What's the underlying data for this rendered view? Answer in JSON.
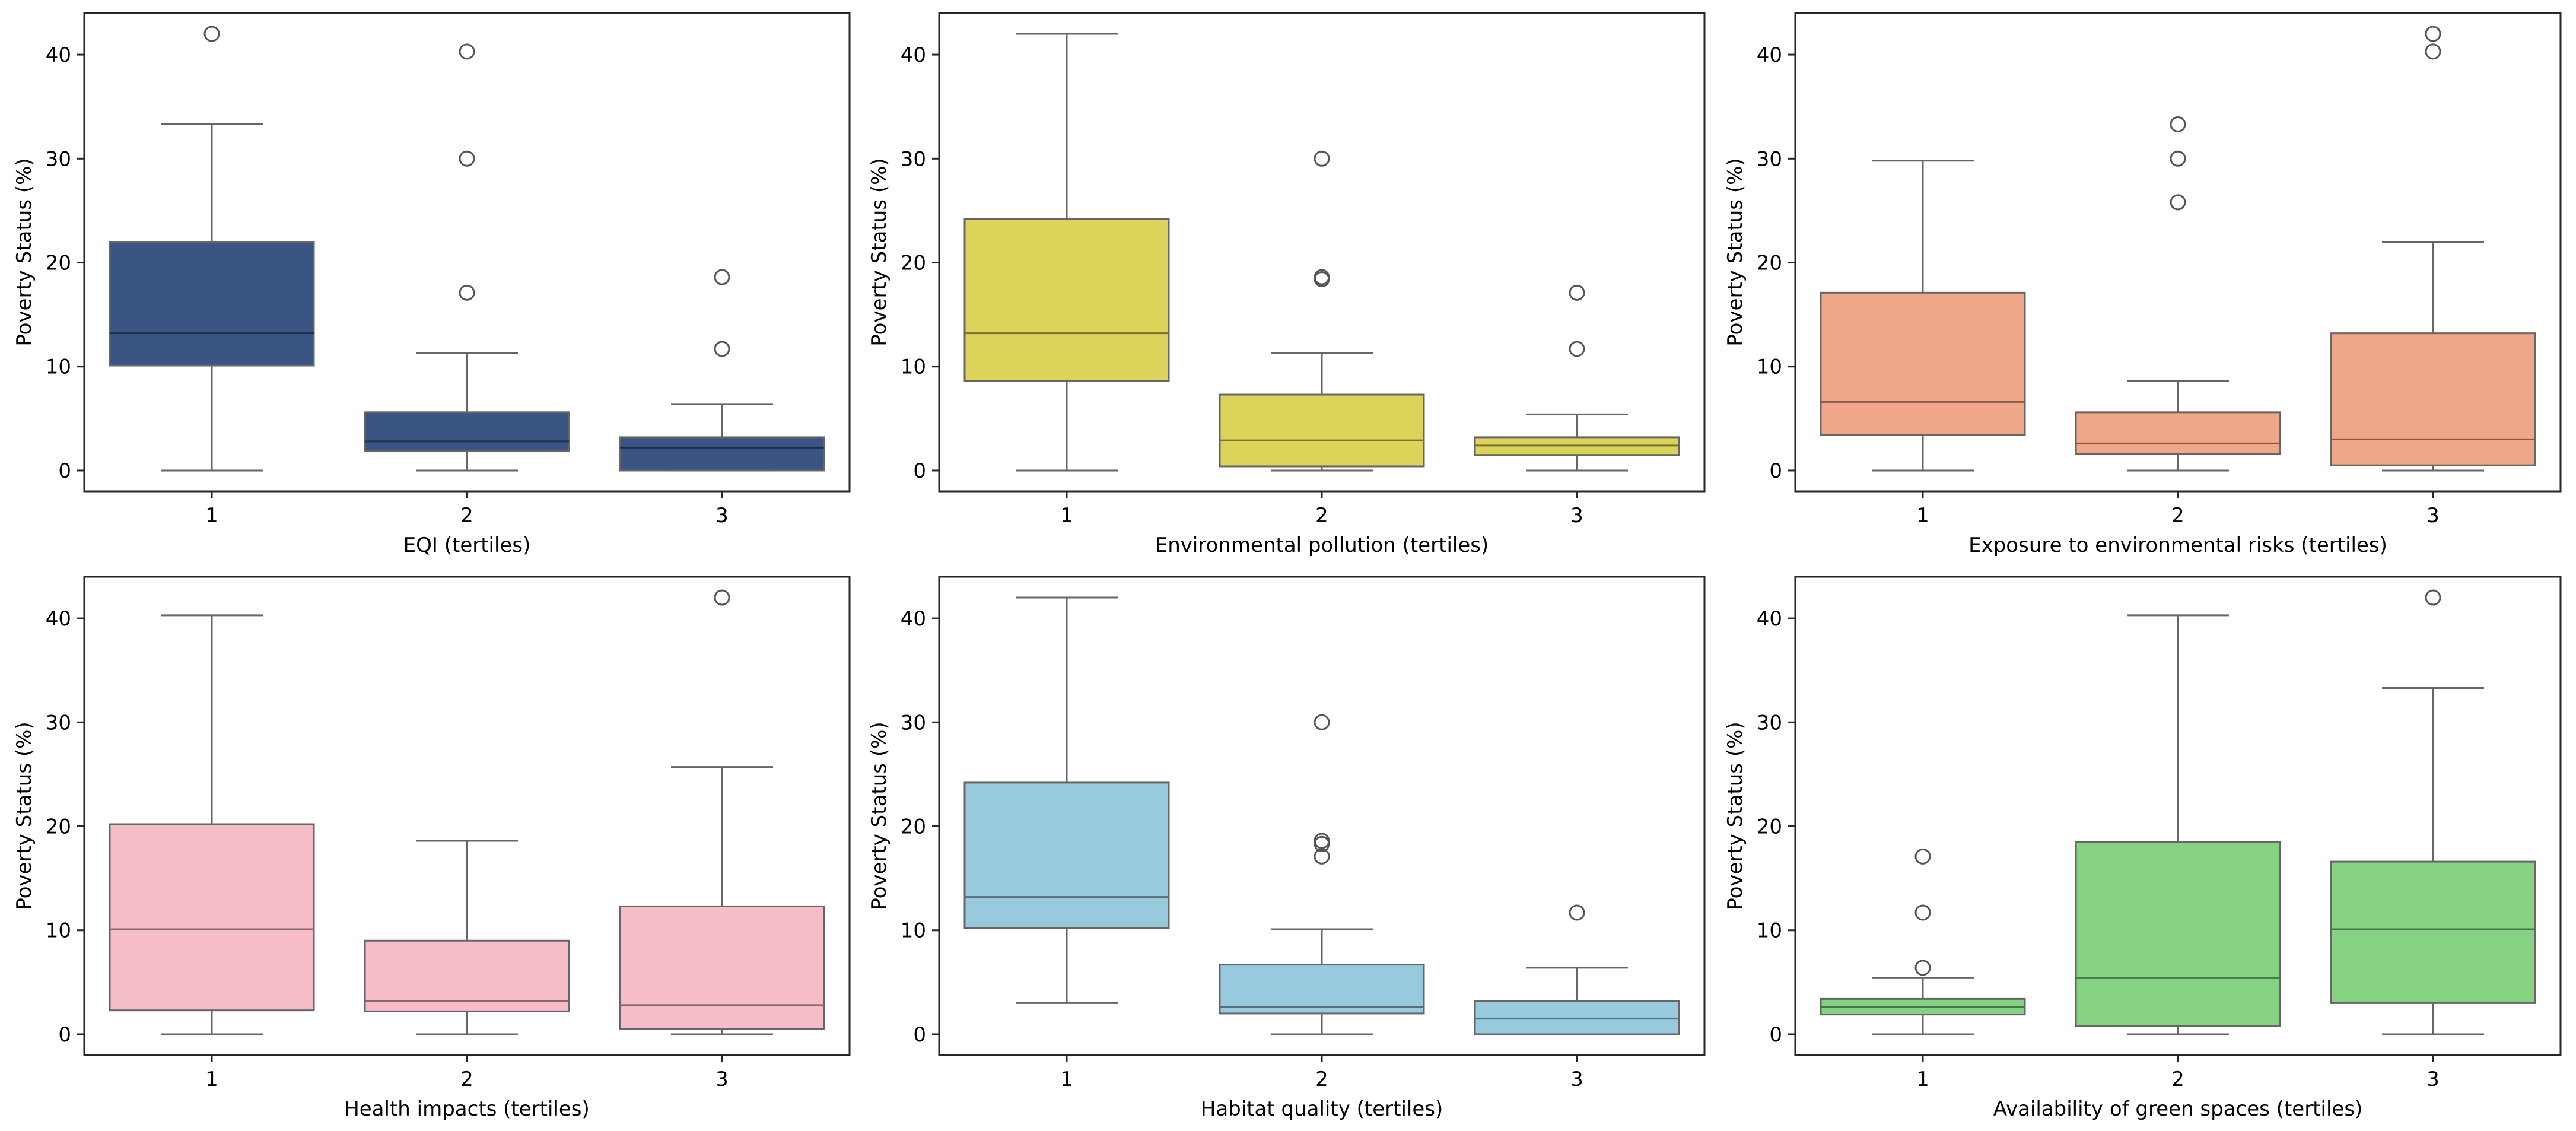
{
  "chart_data": [
    {
      "type": "box",
      "xlabel": "EQI (tertiles)",
      "ylabel": "Poverty Status (%)",
      "ylim": [
        -2,
        44
      ],
      "yticks": [
        0,
        10,
        20,
        30,
        40
      ],
      "categories": [
        "1",
        "2",
        "3"
      ],
      "color": "#3a5583",
      "boxes": [
        {
          "min": 0,
          "q1": 10.1,
          "median": 13.2,
          "q3": 22.0,
          "max": 33.3,
          "outliers": [
            42.0
          ]
        },
        {
          "min": 0,
          "q1": 1.9,
          "median": 2.8,
          "q3": 5.6,
          "max": 11.3,
          "outliers": [
            40.3,
            30.0,
            17.1
          ]
        },
        {
          "min": 0,
          "q1": 0.0,
          "median": 2.2,
          "q3": 3.2,
          "max": 6.4,
          "outliers": [
            18.6,
            11.7
          ]
        }
      ]
    },
    {
      "type": "box",
      "xlabel": "Environmental pollution (tertiles)",
      "ylabel": "Poverty Status (%)",
      "ylim": [
        -2,
        44
      ],
      "yticks": [
        0,
        10,
        20,
        30,
        40
      ],
      "categories": [
        "1",
        "2",
        "3"
      ],
      "color": "#dcd35a",
      "boxes": [
        {
          "min": 0,
          "q1": 8.6,
          "median": 13.2,
          "q3": 24.2,
          "max": 42.0,
          "outliers": []
        },
        {
          "min": 0,
          "q1": 0.4,
          "median": 2.9,
          "q3": 7.3,
          "max": 11.3,
          "outliers": [
            30.0,
            18.6,
            18.4
          ]
        },
        {
          "min": 0,
          "q1": 1.5,
          "median": 2.4,
          "q3": 3.2,
          "max": 5.4,
          "outliers": [
            17.1,
            11.7
          ]
        }
      ]
    },
    {
      "type": "box",
      "xlabel": "Exposure to environmental risks (tertiles)",
      "ylabel": "Poverty Status (%)",
      "ylim": [
        -2,
        44
      ],
      "yticks": [
        0,
        10,
        20,
        30,
        40
      ],
      "categories": [
        "1",
        "2",
        "3"
      ],
      "color": "#efa689",
      "boxes": [
        {
          "min": 0,
          "q1": 3.4,
          "median": 6.6,
          "q3": 17.1,
          "max": 29.8,
          "outliers": []
        },
        {
          "min": 0,
          "q1": 1.6,
          "median": 2.6,
          "q3": 5.6,
          "max": 8.6,
          "outliers": [
            33.3,
            30.0,
            25.8
          ]
        },
        {
          "min": 0,
          "q1": 0.5,
          "median": 3.0,
          "q3": 13.2,
          "max": 22.0,
          "outliers": [
            42.0,
            40.3
          ]
        }
      ]
    },
    {
      "type": "box",
      "xlabel": "Health impacts (tertiles)",
      "ylabel": "Poverty Status (%)",
      "ylim": [
        -2,
        44
      ],
      "yticks": [
        0,
        10,
        20,
        30,
        40
      ],
      "categories": [
        "1",
        "2",
        "3"
      ],
      "color": "#f6bcc7",
      "boxes": [
        {
          "min": 0,
          "q1": 2.3,
          "median": 10.1,
          "q3": 20.2,
          "max": 40.3,
          "outliers": []
        },
        {
          "min": 0,
          "q1": 2.2,
          "median": 3.2,
          "q3": 9.0,
          "max": 18.6,
          "outliers": []
        },
        {
          "min": 0,
          "q1": 0.5,
          "median": 2.8,
          "q3": 12.3,
          "max": 25.7,
          "outliers": [
            42.0
          ]
        }
      ]
    },
    {
      "type": "box",
      "xlabel": "Habitat quality (tertiles)",
      "ylabel": "Poverty Status (%)",
      "ylim": [
        -2,
        44
      ],
      "yticks": [
        0,
        10,
        20,
        30,
        40
      ],
      "categories": [
        "1",
        "2",
        "3"
      ],
      "color": "#98cade",
      "boxes": [
        {
          "min": 3.0,
          "q1": 10.2,
          "median": 13.2,
          "q3": 24.2,
          "max": 42.0,
          "outliers": []
        },
        {
          "min": 0,
          "q1": 2.0,
          "median": 2.6,
          "q3": 6.7,
          "max": 10.1,
          "outliers": [
            30.0,
            18.6,
            18.3,
            17.1
          ]
        },
        {
          "min": 0,
          "q1": 0.0,
          "median": 1.5,
          "q3": 3.2,
          "max": 6.4,
          "outliers": [
            11.7
          ]
        }
      ]
    },
    {
      "type": "box",
      "xlabel": "Availability of green spaces (tertiles)",
      "ylabel": "Poverty Status (%)",
      "ylim": [
        -2,
        44
      ],
      "yticks": [
        0,
        10,
        20,
        30,
        40
      ],
      "categories": [
        "1",
        "2",
        "3"
      ],
      "color": "#85d283",
      "boxes": [
        {
          "min": 0,
          "q1": 1.9,
          "median": 2.6,
          "q3": 3.4,
          "max": 5.4,
          "outliers": [
            17.1,
            11.7,
            6.4
          ]
        },
        {
          "min": 0,
          "q1": 0.8,
          "median": 5.4,
          "q3": 18.5,
          "max": 40.3,
          "outliers": []
        },
        {
          "min": 0,
          "q1": 3.0,
          "median": 10.1,
          "q3": 16.6,
          "max": 33.3,
          "outliers": [
            42.0
          ]
        }
      ]
    }
  ]
}
